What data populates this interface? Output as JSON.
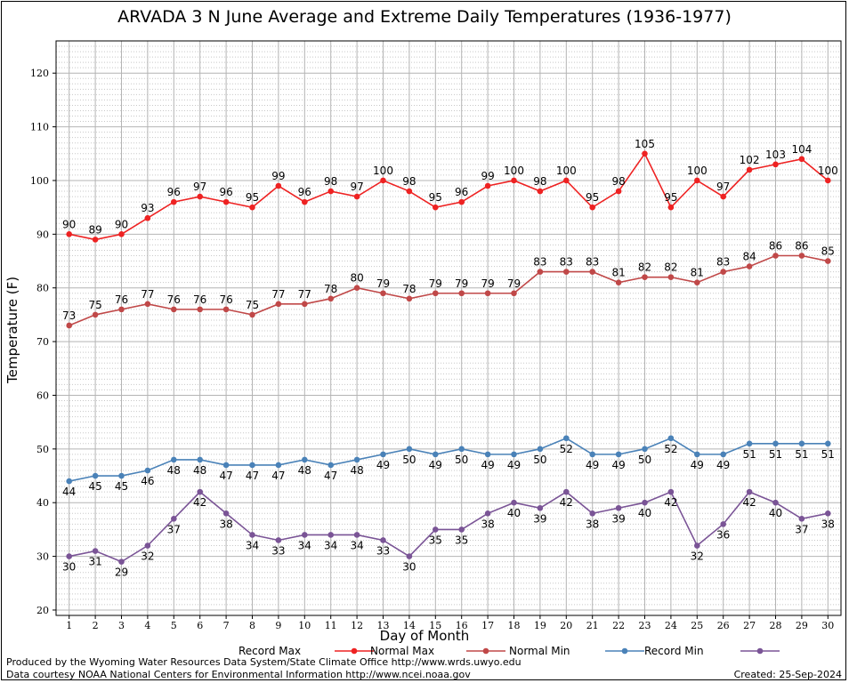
{
  "chart_data": {
    "type": "line",
    "title": "ARVADA 3 N June Average and Extreme Daily Temperatures (1936-1977)",
    "xlabel": "Day of Month",
    "ylabel": "Temperature (F)",
    "x": [
      1,
      2,
      3,
      4,
      5,
      6,
      7,
      8,
      9,
      10,
      11,
      12,
      13,
      14,
      15,
      16,
      17,
      18,
      19,
      20,
      21,
      22,
      23,
      24,
      25,
      26,
      27,
      28,
      29,
      30
    ],
    "xlim": [
      0.5,
      30.5
    ],
    "ylim": [
      19,
      126
    ],
    "yticks": [
      20,
      30,
      40,
      50,
      60,
      70,
      80,
      90,
      100,
      110,
      120
    ],
    "grid": true,
    "legend_position": "bottom",
    "series": [
      {
        "name": "Record Max",
        "color": "#ee2222",
        "label_position": "above",
        "values": [
          90,
          89,
          90,
          93,
          96,
          97,
          96,
          95,
          99,
          96,
          98,
          97,
          100,
          98,
          95,
          96,
          99,
          100,
          98,
          100,
          95,
          98,
          105,
          95,
          100,
          97,
          102,
          103,
          104,
          100
        ]
      },
      {
        "name": "Normal Max",
        "color": "#c04848",
        "label_position": "above",
        "values": [
          73,
          75,
          76,
          77,
          76,
          76,
          76,
          75,
          77,
          77,
          78,
          80,
          79,
          78,
          79,
          79,
          79,
          79,
          83,
          83,
          83,
          81,
          82,
          82,
          81,
          83,
          84,
          86,
          86,
          85
        ]
      },
      {
        "name": "Normal Min",
        "color": "#4a82b8",
        "label_position": "below",
        "values": [
          44,
          45,
          45,
          46,
          48,
          48,
          47,
          47,
          47,
          48,
          47,
          48,
          49,
          50,
          49,
          50,
          49,
          49,
          50,
          52,
          49,
          49,
          50,
          52,
          49,
          49,
          51,
          51,
          51,
          51
        ]
      },
      {
        "name": "Record Min",
        "color": "#7a5496",
        "label_position": "below",
        "values": [
          30,
          31,
          29,
          32,
          37,
          42,
          38,
          34,
          33,
          34,
          34,
          34,
          33,
          30,
          35,
          35,
          38,
          40,
          39,
          42,
          38,
          39,
          40,
          42,
          32,
          36,
          42,
          40,
          37,
          38
        ]
      }
    ]
  },
  "footer": {
    "line1": "Produced by the Wyoming Water Resources Data System/State Climate Office http://www.wrds.uwyo.edu",
    "line2": "Data courtesy NOAA National Centers for Environmental Information http://www.ncei.noaa.gov",
    "created": "Created:  25-Sep-2024"
  }
}
